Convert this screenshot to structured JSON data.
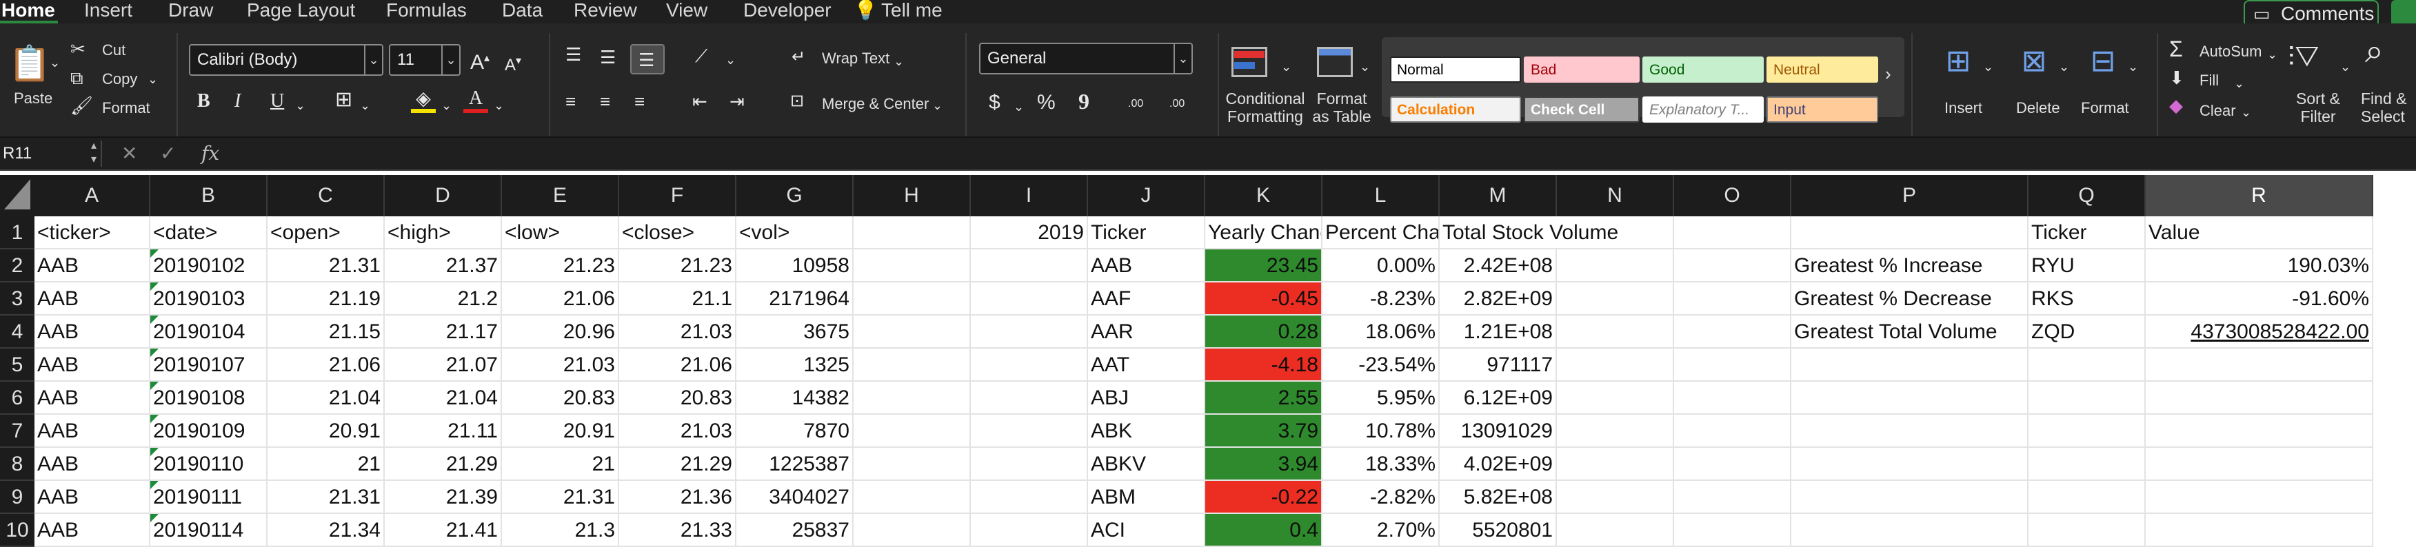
{
  "tabs": [
    "Home",
    "Insert",
    "Draw",
    "Page Layout",
    "Formulas",
    "Data",
    "Review",
    "View",
    "Developer",
    "Tell me"
  ],
  "comments_label": "Comments",
  "ribbon": {
    "clipboard": {
      "paste": "Paste",
      "cut": "Cut",
      "copy": "Copy",
      "format": "Format"
    },
    "font": {
      "family": "Calibri (Body)",
      "size": "11",
      "bold": "B",
      "italic": "I",
      "underline": "U",
      "grow": "A",
      "shrink": "A"
    },
    "alignment": {
      "wrap": "Wrap Text",
      "merge": "Merge & Center"
    },
    "number": {
      "format": "General",
      "currency": "$",
      "percent": "%",
      "comma": "9",
      "inc_dec": ".00",
      "dec_dec": ".00"
    },
    "styles_cmds": {
      "conditional": "Conditional",
      "conditional2": "Formatting",
      "format_as": "Format",
      "format_as2": "as Table"
    },
    "styles": [
      {
        "label": "Normal",
        "bg": "#ffffff",
        "fg": "#000000",
        "border": "#222222"
      },
      {
        "label": "Bad",
        "bg": "#ffc7ce",
        "fg": "#9c0006",
        "border": "#ffc7ce"
      },
      {
        "label": "Good",
        "bg": "#c6efce",
        "fg": "#006100",
        "border": "#c6efce"
      },
      {
        "label": "Neutral",
        "bg": "#ffeb9c",
        "fg": "#9c5700",
        "border": "#ffeb9c"
      },
      {
        "label": "Calculation",
        "bg": "#f2f2f2",
        "fg": "#fa7d00",
        "border": "#7f7f7f"
      },
      {
        "label": "Check Cell",
        "bg": "#a5a5a5",
        "fg": "#ffffff",
        "border": "#3f3f3f"
      },
      {
        "label": "Explanatory T...",
        "bg": "#ffffff",
        "fg": "#7f7f7f",
        "border": "#ffffff"
      },
      {
        "label": "Input",
        "bg": "#ffcc99",
        "fg": "#3f3f76",
        "border": "#7f7f7f"
      }
    ],
    "cells": {
      "insert": "Insert",
      "delete": "Delete",
      "format": "Format"
    },
    "editing": {
      "autosum": "AutoSum",
      "fill": "Fill",
      "clear": "Clear",
      "sort": "Sort &",
      "filter": "Filter",
      "find": "Find &",
      "select": "Select"
    }
  },
  "formula_bar": {
    "name_box": "R11",
    "fx": "fx",
    "formula": ""
  },
  "columns": [
    "A",
    "B",
    "C",
    "D",
    "E",
    "F",
    "G",
    "H",
    "I",
    "J",
    "K",
    "L",
    "M",
    "N",
    "O",
    "P",
    "Q",
    "R"
  ],
  "selected_column": "R",
  "row_numbers": [
    "1",
    "2",
    "3",
    "4",
    "5",
    "6",
    "7",
    "8",
    "9",
    "10"
  ],
  "headers_row": {
    "A": "<ticker>",
    "B": "<date>",
    "C": "<open>",
    "D": "<high>",
    "E": "<low>",
    "F": "<close>",
    "G": "<vol>",
    "I": "2019",
    "J": "Ticker",
    "K": "Yearly Change",
    "L": "Percent Change",
    "M": "Total Stock Volume",
    "Q": "Ticker",
    "R": "Value"
  },
  "raw_rows": [
    {
      "ticker": "AAB",
      "date": "20190102",
      "open": "21.31",
      "high": "21.37",
      "low": "21.23",
      "close": "21.23",
      "vol": "10958"
    },
    {
      "ticker": "AAB",
      "date": "20190103",
      "open": "21.19",
      "high": "21.2",
      "low": "21.06",
      "close": "21.1",
      "vol": "2171964"
    },
    {
      "ticker": "AAB",
      "date": "20190104",
      "open": "21.15",
      "high": "21.17",
      "low": "20.96",
      "close": "21.03",
      "vol": "3675"
    },
    {
      "ticker": "AAB",
      "date": "20190107",
      "open": "21.06",
      "high": "21.07",
      "low": "21.03",
      "close": "21.06",
      "vol": "1325"
    },
    {
      "ticker": "AAB",
      "date": "20190108",
      "open": "21.04",
      "high": "21.04",
      "low": "20.83",
      "close": "20.83",
      "vol": "14382"
    },
    {
      "ticker": "AAB",
      "date": "20190109",
      "open": "20.91",
      "high": "21.11",
      "low": "20.91",
      "close": "21.03",
      "vol": "7870"
    },
    {
      "ticker": "AAB",
      "date": "20190110",
      "open": "21",
      "high": "21.29",
      "low": "21",
      "close": "21.29",
      "vol": "1225387"
    },
    {
      "ticker": "AAB",
      "date": "20190111",
      "open": "21.31",
      "high": "21.39",
      "low": "21.31",
      "close": "21.36",
      "vol": "3404027"
    },
    {
      "ticker": "AAB",
      "date": "20190114",
      "open": "21.34",
      "high": "21.41",
      "low": "21.3",
      "close": "21.33",
      "vol": "25837"
    }
  ],
  "summary_rows": [
    {
      "ticker": "AAB",
      "change": "23.45",
      "pct": "0.00%",
      "volume": "2.42E+08",
      "status": "up"
    },
    {
      "ticker": "AAF",
      "change": "-0.45",
      "pct": "-8.23%",
      "volume": "2.82E+09",
      "status": "down"
    },
    {
      "ticker": "AAR",
      "change": "0.28",
      "pct": "18.06%",
      "volume": "1.21E+08",
      "status": "up"
    },
    {
      "ticker": "AAT",
      "change": "-4.18",
      "pct": "-23.54%",
      "volume": "971117",
      "status": "down"
    },
    {
      "ticker": "ABJ",
      "change": "2.55",
      "pct": "5.95%",
      "volume": "6.12E+09",
      "status": "up"
    },
    {
      "ticker": "ABK",
      "change": "3.79",
      "pct": "10.78%",
      "volume": "13091029",
      "status": "up"
    },
    {
      "ticker": "ABKV",
      "change": "3.94",
      "pct": "18.33%",
      "volume": "4.02E+09",
      "status": "up"
    },
    {
      "ticker": "ABM",
      "change": "-0.22",
      "pct": "-2.82%",
      "volume": "5.82E+08",
      "status": "down"
    },
    {
      "ticker": "ACI",
      "change": "0.4",
      "pct": "2.70%",
      "volume": "5520801",
      "status": "up"
    }
  ],
  "greatest": [
    {
      "label": "Greatest % Increase",
      "ticker": "RYU",
      "value": "190.03%"
    },
    {
      "label": "Greatest % Decrease",
      "ticker": "RKS",
      "value": "-91.60%"
    },
    {
      "label": "Greatest Total Volume",
      "ticker": "ZQD",
      "value": "4373008528422.00"
    }
  ],
  "colors": {
    "positive_fill": "#2e8a2c",
    "negative_fill": "#ec2d22",
    "accent": "#2b8a3e"
  }
}
